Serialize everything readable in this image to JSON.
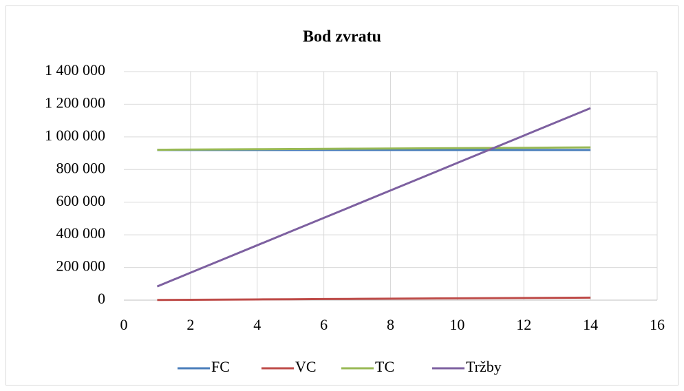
{
  "chart_data": {
    "type": "line",
    "title": "Bod zvratu",
    "x": [
      1,
      2,
      3,
      4,
      5,
      6,
      7,
      8,
      9,
      10,
      11,
      12,
      13,
      14
    ],
    "series": [
      {
        "name": "FC",
        "color": "#4a7ebb",
        "values": [
          920000,
          920000,
          920000,
          920000,
          920000,
          920000,
          920000,
          920000,
          920000,
          920000,
          920000,
          920000,
          920000,
          920000
        ]
      },
      {
        "name": "VC",
        "color": "#be4b48",
        "values": [
          1100,
          2200,
          3300,
          4400,
          5500,
          6600,
          7700,
          8800,
          9900,
          11000,
          12100,
          13200,
          14300,
          15400
        ]
      },
      {
        "name": "TC",
        "color": "#98b954",
        "values": [
          921100,
          922200,
          923300,
          924400,
          925500,
          926600,
          927700,
          928800,
          929900,
          931000,
          932100,
          933200,
          934300,
          935400
        ]
      },
      {
        "name": "Tržby",
        "color": "#7d60a0",
        "values": [
          84000,
          168000,
          252000,
          336000,
          420000,
          504000,
          588000,
          672000,
          756000,
          840000,
          924000,
          1008000,
          1092000,
          1176000
        ]
      }
    ],
    "xlim": [
      0,
      16
    ],
    "xticks": [
      0,
      2,
      4,
      6,
      8,
      10,
      12,
      14,
      16
    ],
    "ylim": [
      0,
      1400000
    ],
    "yticks": [
      0,
      {
        "value": 200000,
        "label": "200 000"
      },
      {
        "value": 400000,
        "label": "400 000"
      },
      {
        "value": 600000,
        "label": "600 000"
      },
      {
        "value": 800000,
        "label": "800 000"
      },
      {
        "value": 1000000,
        "label": "1 000 000"
      },
      {
        "value": 1200000,
        "label": "1 200 000"
      },
      {
        "value": 1400000,
        "label": "1 400 000"
      }
    ],
    "grid": true,
    "legend": "bottom"
  }
}
